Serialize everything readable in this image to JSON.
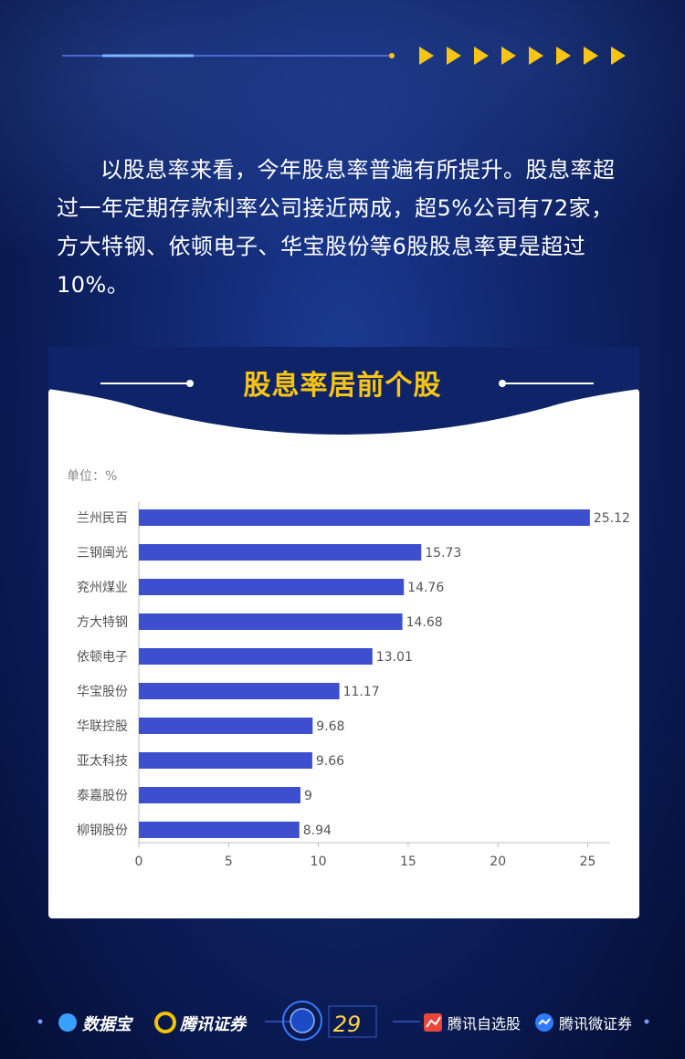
{
  "intro": {
    "paragraph": "以股息率来看，今年股息率普遍有所提升。股息率超过一年定期存款利率公司接近两成，超5%公司有72家，方大特钢、依顿电子、华宝股份等6股股息率更是超过10%。"
  },
  "chart_data": {
    "type": "bar",
    "orientation": "horizontal",
    "title": "股息率居前个股",
    "unit_label": "单位：%",
    "categories": [
      "兰州民百",
      "三钢闽光",
      "兖州煤业",
      "方大特钢",
      "依顿电子",
      "华宝股份",
      "华联控股",
      "亚太科技",
      "泰嘉股份",
      "柳钢股份"
    ],
    "values": [
      25.12,
      15.73,
      14.76,
      14.68,
      13.01,
      11.17,
      9.68,
      9.66,
      9,
      8.94
    ],
    "value_labels": [
      "25.12",
      "15.73",
      "14.76",
      "14.68",
      "13.01",
      "11.17",
      "9.68",
      "9.66",
      "9",
      "8.94"
    ],
    "xlim": [
      0,
      26
    ],
    "xticks": [
      "0",
      "5",
      "10",
      "15",
      "20",
      "25"
    ],
    "bar_color": "#3d4fcf",
    "grid": false
  },
  "footer": {
    "brand_1": "数据宝",
    "brand_2": "腾讯证券",
    "page_number": "29",
    "brand_3": "腾讯自选股",
    "brand_4": "腾讯微证券"
  },
  "colors": {
    "accent_yellow": "#f9c514",
    "background_navy": "#0f2468"
  }
}
